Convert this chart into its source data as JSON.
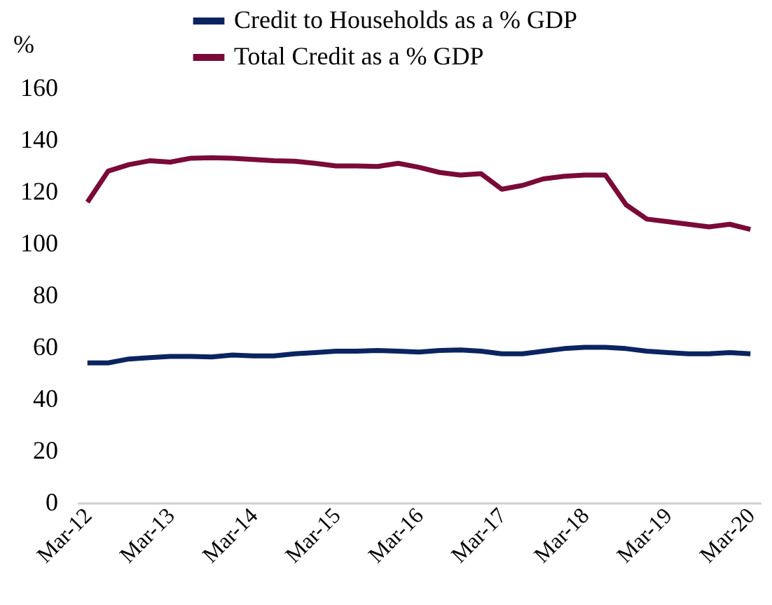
{
  "chart_data": {
    "type": "line",
    "ylabel": "%",
    "categories": [
      "Mar-12",
      null,
      null,
      null,
      "Mar-13",
      null,
      null,
      null,
      "Mar-14",
      null,
      null,
      null,
      "Mar-15",
      null,
      null,
      null,
      "Mar-16",
      null,
      null,
      null,
      "Mar-17",
      null,
      null,
      null,
      "Mar-18",
      null,
      null,
      null,
      "Mar-19",
      null,
      null,
      null,
      "Mar-20"
    ],
    "series": [
      {
        "name": "Credit to Households as a % GDP",
        "color": "#0b2461",
        "values": [
          54,
          54,
          55.5,
          56,
          56.5,
          56.5,
          56.3,
          57,
          56.7,
          56.7,
          57.5,
          58,
          58.5,
          58.5,
          58.8,
          58.5,
          58.2,
          58.8,
          59,
          58.5,
          57.5,
          57.5,
          58.5,
          59.5,
          60,
          60,
          59.5,
          58.5,
          58,
          57.5,
          57.5,
          58,
          57.5
        ]
      },
      {
        "name": "Total Credit as a % GDP",
        "color": "#7a0a38",
        "values": [
          116,
          128,
          130.5,
          132,
          131.5,
          133,
          133.2,
          133,
          132.5,
          132,
          131.8,
          131,
          130,
          130,
          129.8,
          131,
          129.5,
          127.5,
          126.5,
          127,
          121,
          122.5,
          125,
          126,
          126.5,
          126.5,
          115,
          109.5,
          108.5,
          107.5,
          106.5,
          107.5,
          105.5
        ]
      }
    ],
    "ylim": [
      0,
      160
    ],
    "yticks": [
      0,
      20,
      40,
      60,
      80,
      100,
      120,
      140,
      160
    ],
    "grid": false,
    "legend": "top",
    "marker": "none",
    "line_style": "solid"
  }
}
